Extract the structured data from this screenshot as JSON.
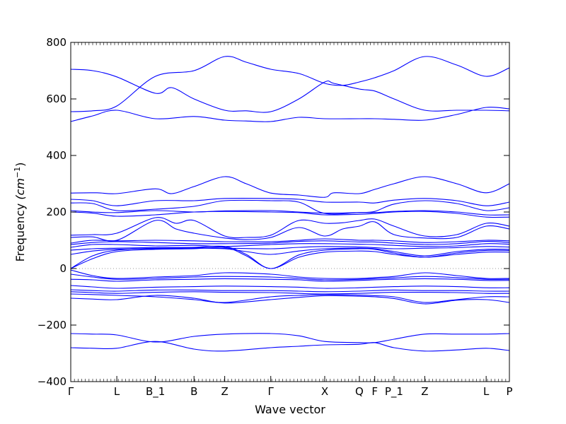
{
  "chart_data": {
    "type": "line",
    "title": "",
    "xlabel": "Wave vector",
    "ylabel_main": "Frequency ",
    "ylabel_unit": "(cm",
    "ylabel_exp": "−1",
    "ylabel_close": ")",
    "ylim": [
      -400,
      800
    ],
    "xlim": [
      0,
      1
    ],
    "yticks": [
      -400,
      -200,
      0,
      200,
      400,
      600,
      800
    ],
    "ytick_labels": [
      "−400",
      "−200",
      "0",
      "200",
      "400",
      "600",
      "800"
    ],
    "xticks": [
      {
        "label": "Γ",
        "x": 0.0
      },
      {
        "label": "L",
        "x": 0.105
      },
      {
        "label": "B_1",
        "x": 0.193
      },
      {
        "label": "B",
        "x": 0.281
      },
      {
        "label": "Z",
        "x": 0.351
      },
      {
        "label": "Γ",
        "x": 0.456
      },
      {
        "label": "X",
        "x": 0.579
      },
      {
        "label": "Q",
        "x": 0.658
      },
      {
        "label": "F",
        "x": 0.693
      },
      {
        "label": "P_1",
        "x": 0.737
      },
      {
        "label": "Z",
        "x": 0.807
      },
      {
        "label": "L",
        "x": 0.947
      },
      {
        "label": "P",
        "x": 1.0
      }
    ],
    "grid": false,
    "line_color": "#0000ff",
    "zero_line_color": "#999999",
    "series": [
      {
        "x": [
          0,
          0.05,
          0.105,
          0.193,
          0.23,
          0.281,
          0.351,
          0.4,
          0.456,
          0.52,
          0.579,
          0.6,
          0.658,
          0.693,
          0.737,
          0.807,
          0.88,
          0.947,
          1.0
        ],
        "y": [
          705,
          700,
          678,
          620,
          640,
          600,
          560,
          558,
          555,
          600,
          660,
          655,
          635,
          628,
          600,
          560,
          560,
          560,
          558
        ]
      },
      {
        "x": [
          0,
          0.05,
          0.105,
          0.193,
          0.281,
          0.351,
          0.4,
          0.456,
          0.52,
          0.579,
          0.62,
          0.658,
          0.693,
          0.737,
          0.807,
          0.88,
          0.947,
          1.0
        ],
        "y": [
          555,
          558,
          575,
          680,
          700,
          750,
          730,
          705,
          690,
          655,
          648,
          660,
          675,
          700,
          750,
          720,
          680,
          710
        ]
      },
      {
        "x": [
          0,
          0.05,
          0.105,
          0.193,
          0.281,
          0.351,
          0.4,
          0.456,
          0.52,
          0.579,
          0.658,
          0.693,
          0.737,
          0.807,
          0.88,
          0.947,
          1.0
        ],
        "y": [
          520,
          540,
          560,
          530,
          538,
          525,
          522,
          520,
          535,
          530,
          530,
          530,
          528,
          525,
          545,
          570,
          565
        ]
      },
      {
        "x": [
          0,
          0.06,
          0.105,
          0.193,
          0.23,
          0.281,
          0.351,
          0.4,
          0.456,
          0.52,
          0.579,
          0.6,
          0.658,
          0.693,
          0.737,
          0.807,
          0.88,
          0.947,
          1.0
        ],
        "y": [
          267,
          268,
          265,
          282,
          265,
          290,
          325,
          300,
          267,
          260,
          252,
          268,
          265,
          280,
          300,
          325,
          300,
          268,
          300
        ]
      },
      {
        "x": [
          0,
          0.05,
          0.105,
          0.193,
          0.281,
          0.351,
          0.456,
          0.52,
          0.579,
          0.658,
          0.693,
          0.737,
          0.807,
          0.88,
          0.947,
          1.0
        ],
        "y": [
          245,
          240,
          222,
          240,
          240,
          248,
          248,
          245,
          235,
          235,
          232,
          242,
          248,
          240,
          222,
          235
        ]
      },
      {
        "x": [
          0,
          0.05,
          0.105,
          0.193,
          0.281,
          0.351,
          0.456,
          0.52,
          0.579,
          0.658,
          0.693,
          0.737,
          0.807,
          0.88,
          0.947,
          1.0
        ],
        "y": [
          232,
          230,
          205,
          210,
          220,
          240,
          240,
          235,
          195,
          198,
          202,
          228,
          240,
          230,
          205,
          215
        ]
      },
      {
        "x": [
          0,
          0.05,
          0.105,
          0.193,
          0.281,
          0.351,
          0.456,
          0.52,
          0.579,
          0.658,
          0.693,
          0.737,
          0.807,
          0.88,
          0.947,
          1.0
        ],
        "y": [
          205,
          200,
          198,
          205,
          200,
          204,
          205,
          200,
          196,
          198,
          198,
          202,
          205,
          200,
          190,
          190
        ]
      },
      {
        "x": [
          0,
          0.05,
          0.105,
          0.193,
          0.281,
          0.351,
          0.456,
          0.52,
          0.579,
          0.658,
          0.693,
          0.737,
          0.807,
          0.88,
          0.947,
          1.0
        ],
        "y": [
          200,
          196,
          185,
          190,
          200,
          202,
          200,
          198,
          190,
          192,
          195,
          200,
          202,
          195,
          182,
          182
        ]
      },
      {
        "x": [
          0,
          0.05,
          0.105,
          0.193,
          0.24,
          0.281,
          0.351,
          0.4,
          0.456,
          0.52,
          0.579,
          0.62,
          0.658,
          0.693,
          0.737,
          0.807,
          0.88,
          0.947,
          1.0
        ],
        "y": [
          118,
          120,
          125,
          180,
          160,
          170,
          115,
          110,
          118,
          170,
          160,
          162,
          170,
          175,
          150,
          115,
          120,
          160,
          150
        ]
      },
      {
        "x": [
          0,
          0.05,
          0.105,
          0.193,
          0.24,
          0.281,
          0.351,
          0.4,
          0.456,
          0.52,
          0.579,
          0.62,
          0.658,
          0.693,
          0.737,
          0.807,
          0.88,
          0.947,
          1.0
        ],
        "y": [
          110,
          112,
          100,
          170,
          140,
          125,
          108,
          102,
          110,
          145,
          115,
          140,
          150,
          165,
          120,
          108,
          110,
          150,
          140
        ]
      },
      {
        "x": [
          0,
          0.05,
          0.105,
          0.193,
          0.281,
          0.351,
          0.456,
          0.52,
          0.579,
          0.658,
          0.693,
          0.737,
          0.807,
          0.88,
          0.947,
          1.0
        ],
        "y": [
          90,
          100,
          98,
          100,
          98,
          95,
          95,
          100,
          105,
          100,
          100,
          98,
          92,
          95,
          100,
          98
        ]
      },
      {
        "x": [
          0,
          0.05,
          0.105,
          0.193,
          0.281,
          0.351,
          0.456,
          0.52,
          0.579,
          0.658,
          0.693,
          0.737,
          0.807,
          0.88,
          0.947,
          1.0
        ],
        "y": [
          85,
          92,
          95,
          92,
          88,
          88,
          90,
          96,
          98,
          94,
          94,
          90,
          85,
          88,
          96,
          92
        ]
      },
      {
        "x": [
          0,
          0.05,
          0.105,
          0.193,
          0.281,
          0.351,
          0.456,
          0.52,
          0.579,
          0.658,
          0.693,
          0.737,
          0.807,
          0.88,
          0.947,
          1.0
        ],
        "y": [
          75,
          85,
          85,
          80,
          82,
          78,
          85,
          88,
          88,
          86,
          85,
          82,
          78,
          80,
          88,
          86
        ]
      },
      {
        "x": [
          0,
          0.05,
          0.105,
          0.193,
          0.281,
          0.351,
          0.456,
          0.52,
          0.579,
          0.658,
          0.693,
          0.737,
          0.807,
          0.88,
          0.947,
          1.0
        ],
        "y": [
          65,
          70,
          72,
          74,
          74,
          72,
          70,
          75,
          78,
          76,
          74,
          70,
          72,
          74,
          78,
          76
        ]
      },
      {
        "x": [
          0,
          0.05,
          0.105,
          0.193,
          0.281,
          0.351,
          0.4,
          0.456,
          0.52,
          0.579,
          0.658,
          0.693,
          0.737,
          0.807,
          0.88,
          0.947,
          1.0
        ],
        "y": [
          50,
          62,
          68,
          70,
          72,
          70,
          60,
          50,
          62,
          70,
          72,
          70,
          60,
          45,
          60,
          68,
          68
        ]
      },
      {
        "x": [
          0,
          0.05,
          0.105,
          0.193,
          0.281,
          0.351,
          0.4,
          0.456,
          0.52,
          0.579,
          0.658,
          0.693,
          0.737,
          0.807,
          0.88,
          0.947,
          1.0
        ],
        "y": [
          0,
          45,
          65,
          72,
          75,
          78,
          50,
          0,
          48,
          65,
          70,
          68,
          55,
          40,
          55,
          64,
          64
        ]
      },
      {
        "x": [
          0,
          0.05,
          0.105,
          0.193,
          0.281,
          0.351,
          0.4,
          0.456,
          0.52,
          0.579,
          0.658,
          0.693,
          0.737,
          0.807,
          0.88,
          0.947,
          1.0
        ],
        "y": [
          0,
          35,
          60,
          68,
          70,
          75,
          45,
          0,
          40,
          58,
          62,
          60,
          50,
          40,
          50,
          58,
          58
        ]
      },
      {
        "x": [
          0,
          0.05,
          0.105,
          0.193,
          0.281,
          0.351,
          0.456,
          0.52,
          0.579,
          0.658,
          0.693,
          0.737,
          0.807,
          0.88,
          0.947,
          1.0
        ],
        "y": [
          -5,
          -25,
          -35,
          -30,
          -25,
          -15,
          -20,
          -30,
          -35,
          -35,
          -32,
          -28,
          -15,
          -25,
          -35,
          -35
        ]
      },
      {
        "x": [
          0,
          0.05,
          0.105,
          0.193,
          0.281,
          0.351,
          0.456,
          0.52,
          0.579,
          0.658,
          0.693,
          0.737,
          0.807,
          0.88,
          0.947,
          1.0
        ],
        "y": [
          -20,
          -30,
          -38,
          -35,
          -30,
          -28,
          -30,
          -35,
          -40,
          -38,
          -36,
          -33,
          -28,
          -32,
          -38,
          -38
        ]
      },
      {
        "x": [
          0,
          0.05,
          0.105,
          0.193,
          0.281,
          0.351,
          0.456,
          0.52,
          0.579,
          0.658,
          0.693,
          0.737,
          0.807,
          0.88,
          0.947,
          1.0
        ],
        "y": [
          -38,
          -40,
          -45,
          -40,
          -38,
          -36,
          -38,
          -40,
          -45,
          -42,
          -40,
          -38,
          -36,
          -38,
          -42,
          -42
        ]
      },
      {
        "x": [
          0,
          0.05,
          0.105,
          0.193,
          0.281,
          0.351,
          0.456,
          0.52,
          0.579,
          0.658,
          0.693,
          0.737,
          0.807,
          0.88,
          0.947,
          1.0
        ],
        "y": [
          -60,
          -65,
          -70,
          -66,
          -64,
          -62,
          -64,
          -66,
          -70,
          -68,
          -66,
          -64,
          -62,
          -64,
          -68,
          -68
        ]
      },
      {
        "x": [
          0,
          0.05,
          0.105,
          0.193,
          0.281,
          0.351,
          0.456,
          0.52,
          0.579,
          0.658,
          0.693,
          0.737,
          0.807,
          0.88,
          0.947,
          1.0
        ],
        "y": [
          -75,
          -78,
          -80,
          -76,
          -76,
          -78,
          -78,
          -80,
          -82,
          -80,
          -78,
          -76,
          -78,
          -78,
          -80,
          -80
        ]
      },
      {
        "x": [
          0,
          0.05,
          0.105,
          0.193,
          0.281,
          0.351,
          0.456,
          0.52,
          0.579,
          0.658,
          0.693,
          0.737,
          0.807,
          0.88,
          0.947,
          1.0
        ],
        "y": [
          -82,
          -85,
          -88,
          -84,
          -82,
          -84,
          -85,
          -88,
          -90,
          -88,
          -86,
          -84,
          -84,
          -85,
          -88,
          -88
        ]
      },
      {
        "x": [
          0,
          0.05,
          0.105,
          0.193,
          0.281,
          0.351,
          0.456,
          0.52,
          0.579,
          0.658,
          0.693,
          0.737,
          0.807,
          0.88,
          0.947,
          1.0
        ],
        "y": [
          -90,
          -92,
          -95,
          -100,
          -110,
          -120,
          -100,
          -95,
          -92,
          -94,
          -96,
          -100,
          -120,
          -110,
          -100,
          -100
        ]
      },
      {
        "x": [
          0,
          0.05,
          0.105,
          0.193,
          0.281,
          0.351,
          0.456,
          0.52,
          0.579,
          0.658,
          0.693,
          0.737,
          0.807,
          0.88,
          0.947,
          1.0
        ],
        "y": [
          -105,
          -108,
          -110,
          -95,
          -105,
          -122,
          -110,
          -102,
          -96,
          -98,
          -100,
          -106,
          -125,
          -112,
          -110,
          -120
        ]
      },
      {
        "x": [
          0,
          0.05,
          0.105,
          0.193,
          0.281,
          0.351,
          0.456,
          0.52,
          0.579,
          0.658,
          0.693,
          0.737,
          0.807,
          0.88,
          0.947,
          1.0
        ],
        "y": [
          -230,
          -232,
          -235,
          -260,
          -240,
          -232,
          -230,
          -238,
          -258,
          -262,
          -262,
          -250,
          -232,
          -232,
          -232,
          -230
        ]
      },
      {
        "x": [
          0,
          0.05,
          0.105,
          0.193,
          0.281,
          0.351,
          0.456,
          0.52,
          0.579,
          0.658,
          0.693,
          0.737,
          0.807,
          0.88,
          0.947,
          1.0
        ],
        "y": [
          -280,
          -282,
          -282,
          -258,
          -285,
          -292,
          -280,
          -275,
          -270,
          -268,
          -262,
          -280,
          -292,
          -288,
          -282,
          -290
        ]
      }
    ]
  }
}
